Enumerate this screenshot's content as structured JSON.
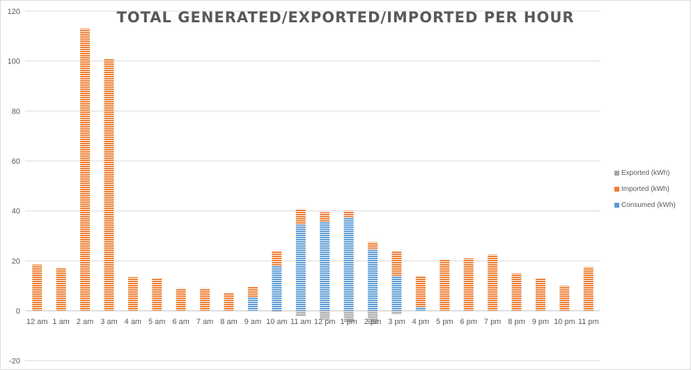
{
  "chart_data": {
    "type": "bar",
    "stacked": true,
    "title": "TOTAL GENERATED/EXPORTED/IMPORTED PER HOUR",
    "xlabel": "",
    "ylabel": "",
    "ylim": [
      -20,
      120
    ],
    "yticks": [
      -20,
      0,
      20,
      40,
      60,
      80,
      100,
      120
    ],
    "grid": true,
    "legend_position": "right",
    "categories": [
      "12 am",
      "1 am",
      "2 am",
      "3 am",
      "4 am",
      "5 am",
      "6 am",
      "7 am",
      "8 am",
      "9 am",
      "10 am",
      "11 am",
      "12 pm",
      "1 pm",
      "2 pm",
      "3 pm",
      "4 pm",
      "5 pm",
      "6 pm",
      "7 pm",
      "8 pm",
      "9 pm",
      "10 pm",
      "11 pm"
    ],
    "series": [
      {
        "name": "Consumed (kWh)",
        "color": "#5b9bd5",
        "values": [
          0,
          0,
          0,
          0,
          0,
          0,
          0,
          0,
          0,
          5.6,
          18,
          34.5,
          35.5,
          37.5,
          24.5,
          14,
          1.5,
          0,
          0,
          0,
          0,
          0,
          0,
          0
        ]
      },
      {
        "name": "Imported (kWh)",
        "color": "#ed7d31",
        "values": [
          18.5,
          17,
          113,
          101,
          13.5,
          13,
          9,
          9,
          7,
          4,
          6,
          6,
          4,
          2.5,
          3,
          10,
          12.5,
          20.5,
          21,
          22.5,
          15,
          13,
          10,
          17.5
        ]
      },
      {
        "name": "Exported (kWh)",
        "color": "#a5a5a5",
        "values": [
          0,
          0,
          0,
          0,
          0,
          0,
          0,
          0,
          0,
          0,
          -0.5,
          -2,
          -3.5,
          -4.5,
          -5.5,
          -1.5,
          0,
          0,
          0,
          0,
          0,
          0,
          0,
          0
        ]
      }
    ],
    "legend_order": [
      "Exported (kWh)",
      "Imported (kWh)",
      "Consumed (kWh)"
    ]
  }
}
